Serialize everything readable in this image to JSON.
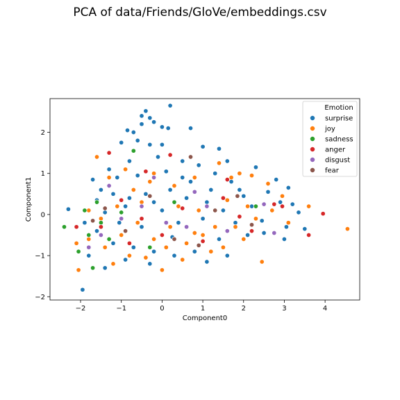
{
  "chart_data": {
    "type": "scatter",
    "title": "PCA of data/Friends/GloVe/embeddings.csv",
    "xlabel": "Component0",
    "ylabel": "Component1",
    "xlim": [
      -2.75,
      4.85
    ],
    "ylim": [
      -2.08,
      2.82
    ],
    "xticks": [
      -2,
      -1,
      0,
      1,
      2,
      3,
      4
    ],
    "yticks": [
      -2,
      -1,
      0,
      1,
      2
    ],
    "grid": false,
    "legend": {
      "title": "Emotion",
      "placement": "top-right"
    },
    "series": [
      {
        "name": "surprise",
        "color": "#1f77b4",
        "points": [
          [
            -2.3,
            0.13
          ],
          [
            -1.95,
            -1.83
          ],
          [
            0.2,
            2.65
          ],
          [
            -0.4,
            2.52
          ],
          [
            -0.5,
            2.4
          ],
          [
            -0.3,
            2.35
          ],
          [
            0.0,
            2.13
          ],
          [
            0.15,
            2.1
          ],
          [
            0.7,
            2.1
          ],
          [
            -0.85,
            2.05
          ],
          [
            -0.7,
            2.0
          ],
          [
            -0.5,
            2.2
          ],
          [
            -0.2,
            2.25
          ],
          [
            -0.6,
            1.8
          ],
          [
            -1.0,
            1.75
          ],
          [
            -0.3,
            1.7
          ],
          [
            0.0,
            1.7
          ],
          [
            1.0,
            1.65
          ],
          [
            1.4,
            1.6
          ],
          [
            1.6,
            1.3
          ],
          [
            2.3,
            1.15
          ],
          [
            2.8,
            0.85
          ],
          [
            3.1,
            0.65
          ],
          [
            3.35,
            0.05
          ],
          [
            3.5,
            -0.35
          ],
          [
            3.0,
            -0.6
          ],
          [
            2.5,
            -0.45
          ],
          [
            2.9,
            0.3
          ],
          [
            2.6,
            0.55
          ],
          [
            3.2,
            0.25
          ],
          [
            2.2,
            0.2
          ],
          [
            1.9,
            0.6
          ],
          [
            1.7,
            0.8
          ],
          [
            1.3,
            1.0
          ],
          [
            0.9,
            1.2
          ],
          [
            0.5,
            1.3
          ],
          [
            -0.1,
            1.4
          ],
          [
            -0.8,
            1.3
          ],
          [
            -1.3,
            1.1
          ],
          [
            -1.7,
            0.85
          ],
          [
            -1.5,
            0.6
          ],
          [
            -1.2,
            0.5
          ],
          [
            -0.8,
            0.4
          ],
          [
            -0.4,
            0.5
          ],
          [
            0.2,
            0.6
          ],
          [
            0.6,
            0.4
          ],
          [
            1.1,
            0.3
          ],
          [
            1.5,
            0.1
          ],
          [
            1.8,
            -0.2
          ],
          [
            2.1,
            -0.5
          ],
          [
            1.4,
            -0.6
          ],
          [
            0.8,
            -0.9
          ],
          [
            0.3,
            -1.0
          ],
          [
            -0.2,
            -0.9
          ],
          [
            -0.7,
            -0.8
          ],
          [
            -1.2,
            -0.7
          ],
          [
            -1.6,
            -0.4
          ],
          [
            -1.8,
            -1.0
          ],
          [
            -1.4,
            -1.3
          ],
          [
            -0.9,
            -1.1
          ],
          [
            -0.5,
            -0.3
          ],
          [
            0.0,
            0.1
          ],
          [
            0.4,
            -0.2
          ],
          [
            1.0,
            -0.1
          ],
          [
            -1.1,
            0.9
          ],
          [
            -0.6,
            0.95
          ],
          [
            0.1,
            1.05
          ],
          [
            -0.9,
            0.2
          ],
          [
            -1.4,
            0.05
          ],
          [
            -1.9,
            -0.2
          ],
          [
            -0.2,
            0.3
          ],
          [
            0.7,
            0.8
          ],
          [
            1.2,
            0.6
          ],
          [
            2.0,
            0.45
          ],
          [
            2.45,
            -0.15
          ],
          [
            3.05,
            -0.3
          ],
          [
            1.6,
            -1.0
          ],
          [
            1.1,
            -1.15
          ],
          [
            -0.3,
            -1.2
          ],
          [
            0.5,
            0.9
          ],
          [
            -1.6,
            0.35
          ],
          [
            -1.05,
            -0.2
          ],
          [
            0.25,
            -0.55
          ]
        ]
      },
      {
        "name": "joy",
        "color": "#ff7f0e",
        "points": [
          [
            4.55,
            -0.35
          ],
          [
            -2.05,
            -1.35
          ],
          [
            1.7,
            0.9
          ],
          [
            2.2,
            0.95
          ],
          [
            1.9,
            1.0
          ],
          [
            2.45,
            -1.15
          ],
          [
            2.0,
            -0.6
          ],
          [
            1.5,
            -0.8
          ],
          [
            1.0,
            -0.5
          ],
          [
            0.6,
            -0.7
          ],
          [
            0.2,
            -0.3
          ],
          [
            -0.2,
            -0.6
          ],
          [
            -0.6,
            -0.2
          ],
          [
            -1.0,
            -0.5
          ],
          [
            -1.4,
            -0.8
          ],
          [
            -1.8,
            -0.6
          ],
          [
            -2.1,
            -0.7
          ],
          [
            -1.2,
            -1.2
          ],
          [
            -0.8,
            -1.0
          ],
          [
            0.0,
            -1.35
          ],
          [
            0.5,
            -1.1
          ],
          [
            1.2,
            -0.9
          ],
          [
            1.8,
            -0.3
          ],
          [
            2.3,
            -0.1
          ],
          [
            2.7,
            0.1
          ],
          [
            3.1,
            -0.2
          ],
          [
            3.6,
            0.2
          ],
          [
            2.95,
            0.45
          ],
          [
            2.6,
            0.75
          ],
          [
            1.4,
            1.25
          ],
          [
            0.8,
            0.9
          ],
          [
            0.3,
            0.7
          ],
          [
            -0.3,
            0.8
          ],
          [
            -0.9,
            1.1
          ],
          [
            -1.3,
            0.9
          ],
          [
            -1.6,
            1.4
          ],
          [
            -0.2,
            1.0
          ],
          [
            0.4,
            0.2
          ],
          [
            0.9,
            0.1
          ],
          [
            1.3,
            -0.3
          ],
          [
            -0.5,
            0.3
          ],
          [
            -1.1,
            0.2
          ],
          [
            -1.5,
            -0.1
          ],
          [
            0.1,
            -0.8
          ],
          [
            -0.4,
            -1.05
          ],
          [
            0.8,
            -0.45
          ],
          [
            1.6,
            0.35
          ],
          [
            2.1,
            0.2
          ],
          [
            -0.7,
            0.6
          ],
          [
            -1.8,
            0.1
          ]
        ]
      },
      {
        "name": "sadness",
        "color": "#2ca02c",
        "points": [
          [
            -2.4,
            -0.3
          ],
          [
            -2.05,
            -0.9
          ],
          [
            -1.8,
            -0.5
          ],
          [
            -1.9,
            0.1
          ],
          [
            -1.7,
            -1.3
          ],
          [
            -1.5,
            -0.2
          ],
          [
            -1.6,
            0.3
          ],
          [
            -1.3,
            -0.6
          ],
          [
            -0.7,
            1.55
          ],
          [
            2.3,
            0.2
          ],
          [
            -0.3,
            -0.8
          ],
          [
            0.3,
            0.3
          ],
          [
            -1.0,
            0.05
          ]
        ]
      },
      {
        "name": "anger",
        "color": "#d62728",
        "points": [
          [
            3.95,
            0.02
          ],
          [
            3.6,
            -0.5
          ],
          [
            2.95,
            0.2
          ],
          [
            2.75,
            0.25
          ],
          [
            2.2,
            -0.4
          ],
          [
            1.9,
            -0.05
          ],
          [
            1.5,
            0.4
          ],
          [
            1.0,
            -0.65
          ],
          [
            0.5,
            0.15
          ],
          [
            0.0,
            -0.5
          ],
          [
            -0.5,
            -0.1
          ],
          [
            -1.0,
            0.35
          ],
          [
            -1.5,
            -0.3
          ],
          [
            -2.1,
            -0.3
          ],
          [
            -1.3,
            1.5
          ],
          [
            -0.4,
            1.05
          ],
          [
            0.2,
            1.45
          ],
          [
            1.6,
            0.85
          ],
          [
            -0.8,
            -0.7
          ]
        ]
      },
      {
        "name": "disgust",
        "color": "#9467bd",
        "points": [
          [
            -1.8,
            -0.8
          ],
          [
            -1.5,
            -0.5
          ],
          [
            -1.0,
            -0.1
          ],
          [
            -0.5,
            0.2
          ],
          [
            0.1,
            -0.2
          ],
          [
            0.6,
            -0.3
          ],
          [
            1.1,
            0.2
          ],
          [
            1.6,
            -0.4
          ],
          [
            2.5,
            0.25
          ],
          [
            -1.3,
            0.7
          ],
          [
            -0.2,
            0.9
          ],
          [
            0.8,
            0.55
          ],
          [
            2.75,
            -0.45
          ]
        ]
      },
      {
        "name": "fear",
        "color": "#8c564b",
        "points": [
          [
            0.7,
            1.4
          ],
          [
            -1.4,
            0.15
          ],
          [
            -0.9,
            -0.4
          ],
          [
            0.3,
            -0.6
          ],
          [
            1.3,
            0.1
          ],
          [
            2.2,
            -0.25
          ],
          [
            -0.3,
            0.45
          ],
          [
            0.9,
            -0.75
          ],
          [
            -1.7,
            -0.15
          ],
          [
            1.85,
            0.45
          ]
        ]
      }
    ]
  }
}
